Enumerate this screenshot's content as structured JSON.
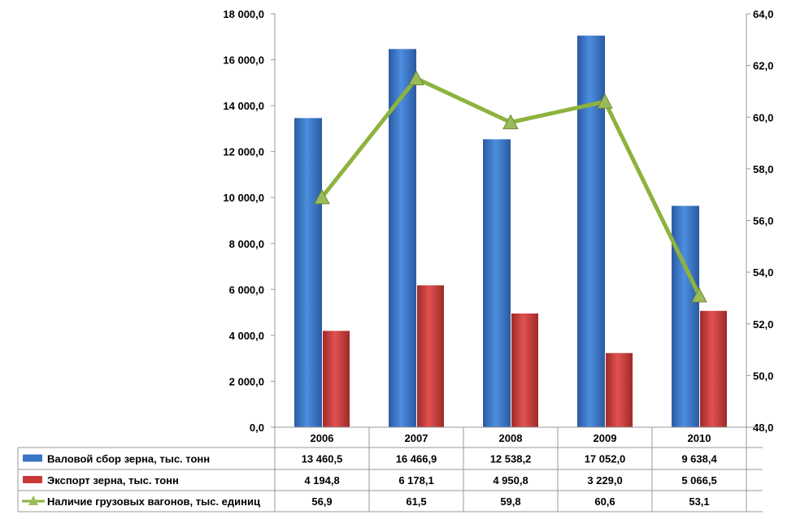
{
  "chart_data": {
    "type": "bar",
    "categories": [
      "2006",
      "2007",
      "2008",
      "2009",
      "2010"
    ],
    "series": [
      {
        "name": "Валовой сбор зерна, тыс. тонн",
        "type": "bar",
        "axis": "left",
        "color": "#3a75c4",
        "values": [
          13460.5,
          16466.9,
          12538.2,
          17052.0,
          9638.4
        ],
        "labels": [
          "13 460,5",
          "16 466,9",
          "12 538,2",
          "17 052,0",
          "9 638,4"
        ]
      },
      {
        "name": "Экспорт зерна, тыс. тонн",
        "type": "bar",
        "axis": "left",
        "color": "#c83a38",
        "values": [
          4194.8,
          6178.1,
          4950.8,
          3229.0,
          5066.5
        ],
        "labels": [
          "4 194,8",
          "6 178,1",
          "4 950,8",
          "3 229,0",
          "5 066,5"
        ]
      },
      {
        "name": "Наличие грузовых вагонов, тыс. единиц",
        "type": "line",
        "axis": "right",
        "color": "#8db33e",
        "values": [
          56.9,
          61.5,
          59.8,
          60.6,
          53.1
        ],
        "labels": [
          "56,9",
          "61,5",
          "59,8",
          "60,6",
          "53,1"
        ]
      }
    ],
    "y_left": {
      "ylim": [
        0,
        18000
      ],
      "ticks": [
        "0,0",
        "2 000,0",
        "4 000,0",
        "6 000,0",
        "8 000,0",
        "10 000,0",
        "12 000,0",
        "14 000,0",
        "16 000,0",
        "18 000,0"
      ]
    },
    "y_right": {
      "ylim": [
        48,
        64
      ],
      "ticks": [
        "48,0",
        "50,0",
        "52,0",
        "54,0",
        "56,0",
        "58,0",
        "60,0",
        "62,0",
        "64,0"
      ]
    },
    "legend": "data-table-bottom",
    "grid": false
  }
}
